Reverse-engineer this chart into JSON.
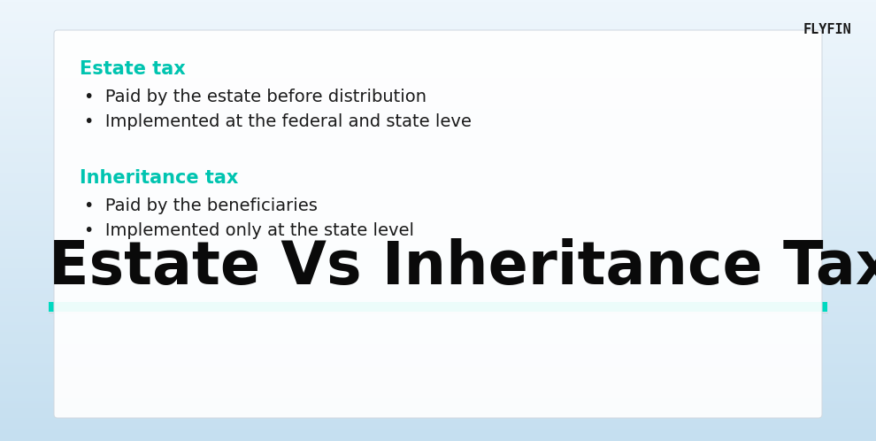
{
  "title": "Estate Vs Inheritance Tax",
  "title_fontsize": 48,
  "title_color": "#0a0a0a",
  "title_underline_color": "#00d9c0",
  "logo_text": "FLYFIN",
  "logo_fontsize": 11,
  "logo_color": "#1a1a1a",
  "bg_top_color": "#f0f8fd",
  "bg_bottom_color": "#c8dff0",
  "card_bg": "#ffffff",
  "section1_heading": "Estate tax",
  "section1_color": "#00c4b0",
  "section1_bullets": [
    "Paid by the estate before distribution",
    "Implemented at the federal and state leve"
  ],
  "section2_heading": "Inheritance tax",
  "section2_color": "#00c4b0",
  "section2_bullets": [
    "Paid by the beneficiaries",
    "Implemented only at the state level"
  ],
  "bullet_fontsize": 14,
  "heading_fontsize": 15,
  "bullet_color": "#1a1a1a"
}
